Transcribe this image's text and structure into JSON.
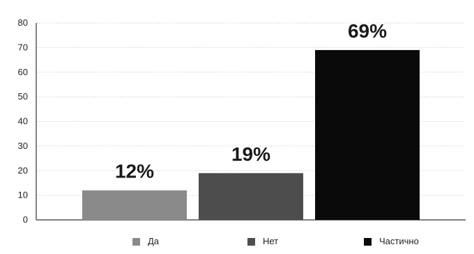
{
  "chart_data": {
    "type": "bar",
    "categories": [
      "Да",
      "Нет",
      "Частично"
    ],
    "values": [
      12,
      19,
      69
    ],
    "data_labels": [
      "12%",
      "19%",
      "69%"
    ],
    "colors": [
      "#8a8a8a",
      "#4d4d4d",
      "#0a0a0a"
    ],
    "ylim": [
      0,
      80
    ],
    "yticks": [
      "0",
      "10",
      "20",
      "30",
      "40",
      "50",
      "60",
      "70",
      "80"
    ],
    "grid": true,
    "legend": {
      "position": "bottom",
      "items": [
        {
          "label": "Да",
          "color": "#8a8a8a"
        },
        {
          "label": "Нет",
          "color": "#4d4d4d"
        },
        {
          "label": "Частично",
          "color": "#0a0a0a"
        }
      ]
    }
  }
}
